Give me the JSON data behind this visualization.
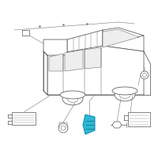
{
  "bg_color": "#ffffff",
  "car_color": "#555555",
  "highlight_color": "#2eb8d4",
  "line_color": "#777777",
  "fig_size": [
    2.0,
    2.0
  ],
  "dpi": 100,
  "car_lw": 0.55,
  "comp_lw": 0.5,
  "conn_lw": 0.4
}
